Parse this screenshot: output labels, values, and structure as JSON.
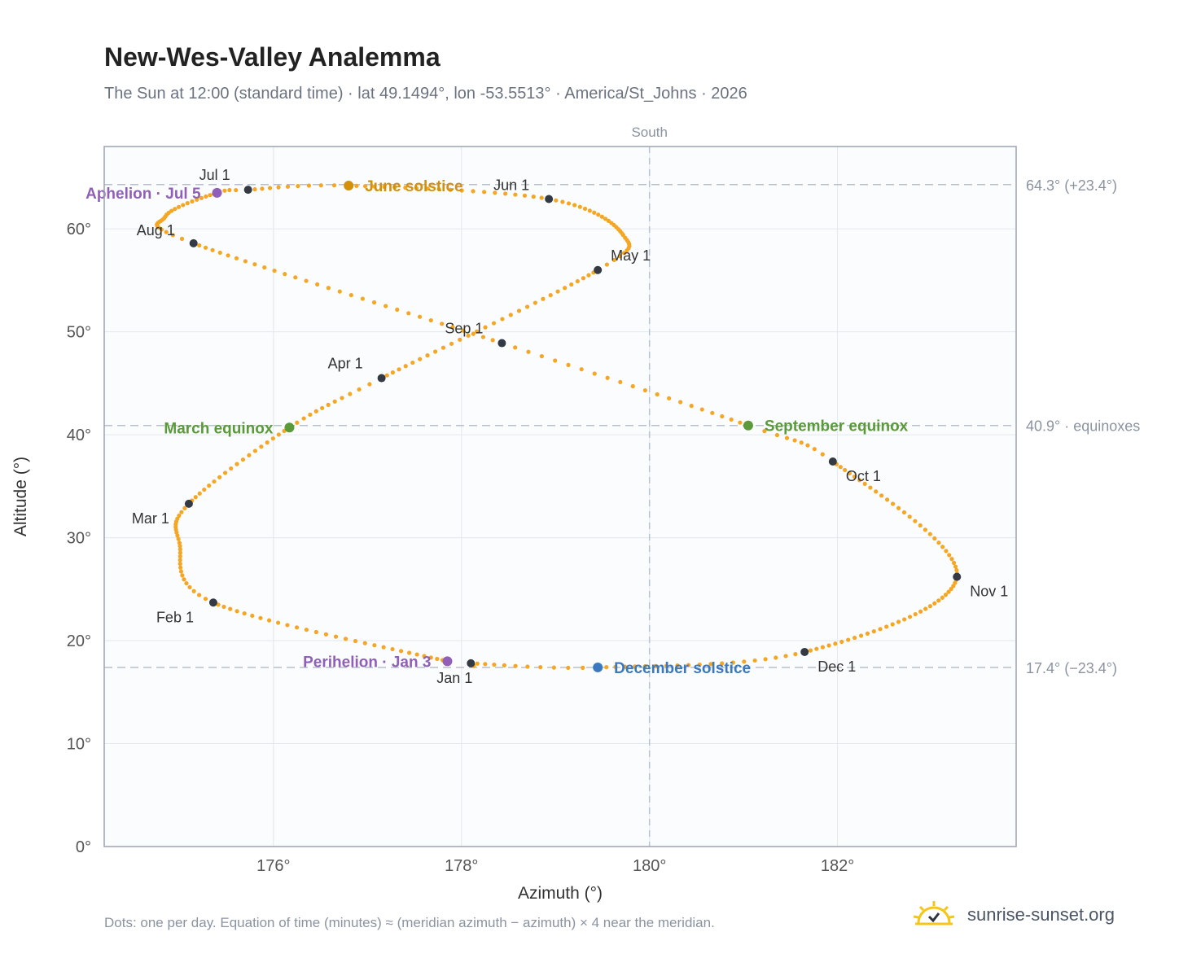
{
  "header": {
    "title": "New-Wes-Valley Analemma",
    "subtitle": "The Sun at 12:00 (standard time) · lat 49.1494°, lon -53.5513° · America/St_Johns · 2026"
  },
  "footer": {
    "note": "Dots: one per day. Equation of time (minutes) ≈ (meridian azimuth − azimuth) × 4 near the meridian.",
    "brand": "sunrise-sunset.org",
    "brand_icon": "sun-logo-icon"
  },
  "colors": {
    "curve": "#f5a623",
    "month_marker": "#333a44",
    "june_solstice": "#d4900a",
    "december_solstice": "#3a78c0",
    "equinox": "#5a9a38",
    "apsis": "#9060b8",
    "reference_line": "#b8c0cc",
    "plot_background": "#fafcfe"
  },
  "chart_data": {
    "type": "scatter",
    "title": "New-Wes-Valley Analemma",
    "xlabel": "Azimuth (°)",
    "ylabel": "Altitude (°)",
    "xlim": [
      174.2,
      183.9
    ],
    "ylim": [
      0,
      68
    ],
    "x_ticks": [
      "176°",
      "178°",
      "180°",
      "182°"
    ],
    "x_tick_values": [
      176,
      178,
      180,
      182
    ],
    "y_ticks": [
      "0°",
      "10°",
      "20°",
      "30°",
      "40°",
      "50°",
      "60°"
    ],
    "y_tick_values": [
      0,
      10,
      20,
      30,
      40,
      50,
      60
    ],
    "grid": true,
    "meridian": {
      "azimuth": 180,
      "label": "South"
    },
    "reference_lines": [
      {
        "altitude": 64.3,
        "label": "64.3° (+23.4°)"
      },
      {
        "altitude": 40.9,
        "label": "40.9° · equinoxes"
      },
      {
        "altitude": 17.4,
        "label": "17.4° (−23.4°)"
      }
    ],
    "month_markers": [
      {
        "label": "Jan 1",
        "azimuth": 178.1,
        "altitude": 17.8
      },
      {
        "label": "Feb 1",
        "azimuth": 175.36,
        "altitude": 23.7
      },
      {
        "label": "Mar 1",
        "azimuth": 175.1,
        "altitude": 33.3
      },
      {
        "label": "Apr 1",
        "azimuth": 177.15,
        "altitude": 45.5
      },
      {
        "label": "May 1",
        "azimuth": 179.45,
        "altitude": 56.0
      },
      {
        "label": "Jun 1",
        "azimuth": 178.93,
        "altitude": 62.9
      },
      {
        "label": "Jul 1",
        "azimuth": 175.73,
        "altitude": 63.8
      },
      {
        "label": "Aug 1",
        "azimuth": 175.15,
        "altitude": 58.6
      },
      {
        "label": "Sep 1",
        "azimuth": 178.43,
        "altitude": 48.9
      },
      {
        "label": "Oct 1",
        "azimuth": 181.95,
        "altitude": 37.4
      },
      {
        "label": "Nov 1",
        "azimuth": 183.27,
        "altitude": 26.2
      },
      {
        "label": "Dec 1",
        "azimuth": 181.65,
        "altitude": 18.9
      }
    ],
    "events": [
      {
        "label": "June solstice",
        "azimuth": 176.8,
        "altitude": 64.2,
        "kind": "june_solstice"
      },
      {
        "label": "December solstice",
        "azimuth": 179.45,
        "altitude": 17.4,
        "kind": "december_solstice"
      },
      {
        "label": "March equinox",
        "azimuth": 176.17,
        "altitude": 40.7,
        "kind": "equinox"
      },
      {
        "label": "September equinox",
        "azimuth": 181.05,
        "altitude": 40.9,
        "kind": "equinox"
      },
      {
        "label": "Perihelion · Jan 3",
        "azimuth": 177.85,
        "altitude": 18.0,
        "kind": "apsis"
      },
      {
        "label": "Aphelion · Jul 5",
        "azimuth": 175.4,
        "altitude": 63.5,
        "kind": "apsis"
      }
    ],
    "extremes": {
      "westernmost": {
        "azimuth": 174.85,
        "altitude": 61.2
      },
      "easternmost_upper": {
        "azimuth": 179.72,
        "altitude": 59.4
      },
      "westernmost_lower": {
        "azimuth": 175.0,
        "altitude": 29.5
      },
      "easternmost_lower": {
        "azimuth": 183.3,
        "altitude": 27.0
      }
    }
  }
}
